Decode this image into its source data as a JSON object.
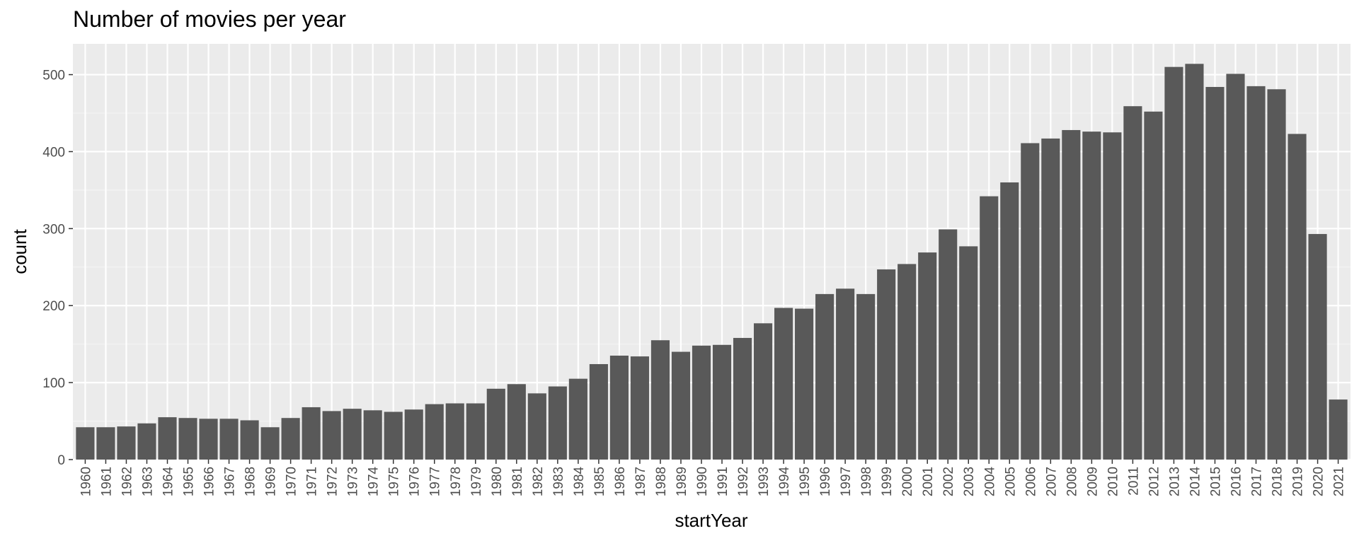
{
  "chart_data": {
    "type": "bar",
    "title": "Number of movies per year",
    "xlabel": "startYear",
    "ylabel": "count",
    "ylim": [
      0,
      540
    ],
    "yticks": [
      0,
      100,
      200,
      300,
      400,
      500
    ],
    "grid": true,
    "legend": "none",
    "colors": {
      "bar": "#595959",
      "panel": "#ebebeb",
      "grid_major": "#ffffff",
      "grid_minor": "#f4f4f4",
      "tick_label": "#4d4d4d"
    },
    "categories": [
      "1960",
      "1961",
      "1962",
      "1963",
      "1964",
      "1965",
      "1966",
      "1967",
      "1968",
      "1969",
      "1970",
      "1971",
      "1972",
      "1973",
      "1974",
      "1975",
      "1976",
      "1977",
      "1978",
      "1979",
      "1980",
      "1981",
      "1982",
      "1983",
      "1984",
      "1985",
      "1986",
      "1987",
      "1988",
      "1989",
      "1990",
      "1991",
      "1992",
      "1993",
      "1994",
      "1995",
      "1996",
      "1997",
      "1998",
      "1999",
      "2000",
      "2001",
      "2002",
      "2003",
      "2004",
      "2005",
      "2006",
      "2007",
      "2008",
      "2009",
      "2010",
      "2011",
      "2012",
      "2013",
      "2014",
      "2015",
      "2016",
      "2017",
      "2018",
      "2019",
      "2020",
      "2021"
    ],
    "values": [
      42,
      42,
      43,
      47,
      55,
      54,
      53,
      53,
      51,
      42,
      54,
      68,
      63,
      66,
      64,
      62,
      65,
      72,
      73,
      73,
      92,
      98,
      86,
      95,
      105,
      124,
      135,
      134,
      155,
      140,
      148,
      149,
      158,
      177,
      197,
      196,
      215,
      222,
      215,
      247,
      254,
      269,
      299,
      277,
      342,
      360,
      411,
      417,
      428,
      426,
      425,
      459,
      452,
      510,
      514,
      484,
      501,
      485,
      481,
      423,
      293,
      78
    ]
  }
}
